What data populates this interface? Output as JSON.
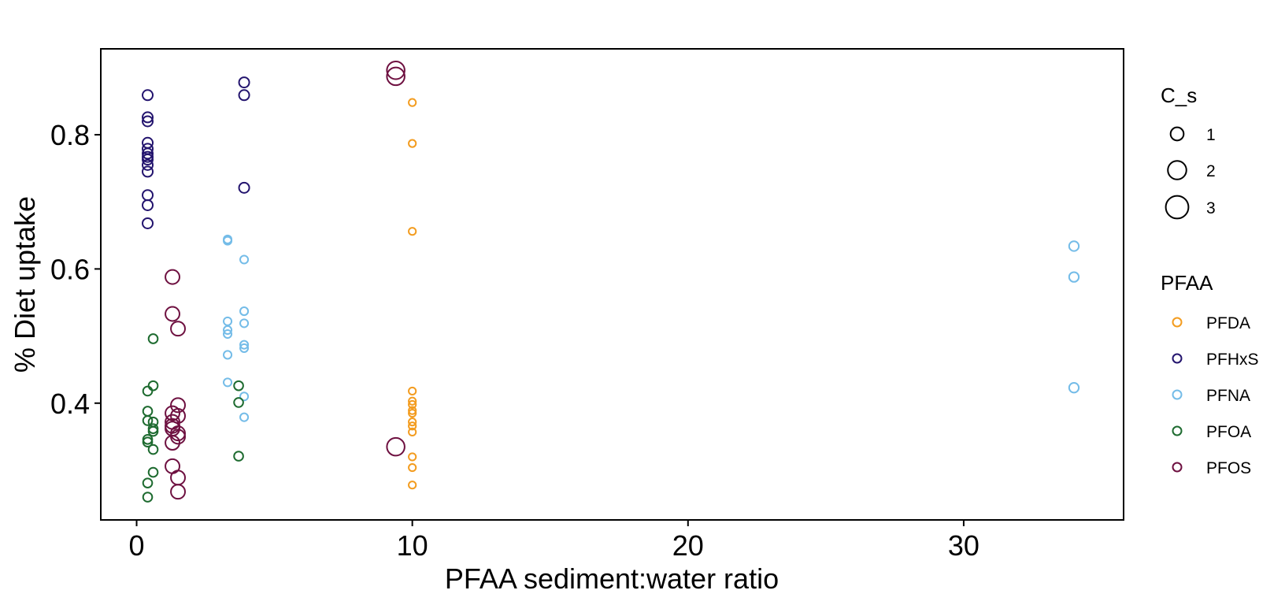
{
  "chart_data": {
    "type": "scatter",
    "xlabel": "PFAA sediment:water ratio",
    "ylabel": "% Diet uptake",
    "xlim": [
      -1.3,
      35.8
    ],
    "ylim": [
      0.226,
      0.928
    ],
    "x_ticks": [
      0,
      10,
      20,
      30
    ],
    "y_ticks": [
      0.4,
      0.6,
      0.8
    ],
    "x_tick_labels": [
      "0",
      "10",
      "20",
      "30"
    ],
    "y_tick_labels": [
      "0.4",
      "0.6",
      "0.8"
    ],
    "grid": false,
    "legend_position": "right",
    "size_legend": {
      "title": "C_s",
      "entries": [
        {
          "label": "1",
          "value": 1
        },
        {
          "label": "2",
          "value": 2
        },
        {
          "label": "3",
          "value": 3
        }
      ]
    },
    "color_legend": {
      "title": "PFAA",
      "entries": [
        {
          "label": "PFDA",
          "color": "#f39c1f"
        },
        {
          "label": "PFHxS",
          "color": "#23146e"
        },
        {
          "label": "PFNA",
          "color": "#74bce8"
        },
        {
          "label": "PFOA",
          "color": "#1e6b30"
        },
        {
          "label": "PFOS",
          "color": "#6e1040"
        }
      ]
    },
    "series": [
      {
        "name": "PFDA",
        "color": "#f39c1f",
        "points": [
          {
            "x": 10.0,
            "y": 0.848,
            "size": 0.5
          },
          {
            "x": 10.0,
            "y": 0.787,
            "size": 0.5
          },
          {
            "x": 10.0,
            "y": 0.656,
            "size": 0.5
          },
          {
            "x": 10.0,
            "y": 0.418,
            "size": 0.5
          },
          {
            "x": 10.0,
            "y": 0.403,
            "size": 0.5
          },
          {
            "x": 10.0,
            "y": 0.398,
            "size": 0.5
          },
          {
            "x": 10.0,
            "y": 0.389,
            "size": 0.5
          },
          {
            "x": 10.0,
            "y": 0.385,
            "size": 0.5
          },
          {
            "x": 10.0,
            "y": 0.372,
            "size": 0.5
          },
          {
            "x": 10.0,
            "y": 0.366,
            "size": 0.5
          },
          {
            "x": 10.0,
            "y": 0.357,
            "size": 0.5
          },
          {
            "x": 10.0,
            "y": 0.32,
            "size": 0.5
          },
          {
            "x": 10.0,
            "y": 0.304,
            "size": 0.5
          },
          {
            "x": 10.0,
            "y": 0.278,
            "size": 0.5
          }
        ]
      },
      {
        "name": "PFHxS",
        "color": "#23146e",
        "points": [
          {
            "x": 0.4,
            "y": 0.859,
            "size": 1.0
          },
          {
            "x": 0.4,
            "y": 0.826,
            "size": 1.0
          },
          {
            "x": 0.4,
            "y": 0.82,
            "size": 1.0
          },
          {
            "x": 0.4,
            "y": 0.788,
            "size": 1.0
          },
          {
            "x": 0.4,
            "y": 0.779,
            "size": 1.0
          },
          {
            "x": 0.4,
            "y": 0.772,
            "size": 1.0
          },
          {
            "x": 0.4,
            "y": 0.767,
            "size": 1.0
          },
          {
            "x": 0.4,
            "y": 0.763,
            "size": 1.0
          },
          {
            "x": 0.4,
            "y": 0.755,
            "size": 1.0
          },
          {
            "x": 0.4,
            "y": 0.745,
            "size": 1.0
          },
          {
            "x": 0.4,
            "y": 0.71,
            "size": 1.0
          },
          {
            "x": 0.4,
            "y": 0.695,
            "size": 1.0
          },
          {
            "x": 0.4,
            "y": 0.668,
            "size": 1.0
          },
          {
            "x": 3.9,
            "y": 0.878,
            "size": 1.0
          },
          {
            "x": 3.9,
            "y": 0.859,
            "size": 1.0
          },
          {
            "x": 3.9,
            "y": 0.721,
            "size": 1.0
          }
        ]
      },
      {
        "name": "PFNA",
        "color": "#74bce8",
        "points": [
          {
            "x": 3.3,
            "y": 0.644,
            "size": 0.6
          },
          {
            "x": 3.3,
            "y": 0.642,
            "size": 0.6
          },
          {
            "x": 3.3,
            "y": 0.522,
            "size": 0.6
          },
          {
            "x": 3.3,
            "y": 0.509,
            "size": 0.6
          },
          {
            "x": 3.3,
            "y": 0.503,
            "size": 0.6
          },
          {
            "x": 3.3,
            "y": 0.472,
            "size": 0.6
          },
          {
            "x": 3.3,
            "y": 0.431,
            "size": 0.6
          },
          {
            "x": 3.9,
            "y": 0.614,
            "size": 0.6
          },
          {
            "x": 3.9,
            "y": 0.537,
            "size": 0.6
          },
          {
            "x": 3.9,
            "y": 0.519,
            "size": 0.6
          },
          {
            "x": 3.9,
            "y": 0.487,
            "size": 0.6
          },
          {
            "x": 3.9,
            "y": 0.482,
            "size": 0.6
          },
          {
            "x": 3.9,
            "y": 0.41,
            "size": 0.6
          },
          {
            "x": 3.9,
            "y": 0.379,
            "size": 0.6
          },
          {
            "x": 34.0,
            "y": 0.634,
            "size": 0.9
          },
          {
            "x": 34.0,
            "y": 0.588,
            "size": 0.9
          },
          {
            "x": 34.0,
            "y": 0.423,
            "size": 0.9
          }
        ]
      },
      {
        "name": "PFOA",
        "color": "#1e6b30",
        "points": [
          {
            "x": 0.6,
            "y": 0.496,
            "size": 0.8
          },
          {
            "x": 0.6,
            "y": 0.426,
            "size": 0.8
          },
          {
            "x": 0.4,
            "y": 0.418,
            "size": 0.8
          },
          {
            "x": 0.4,
            "y": 0.388,
            "size": 0.8
          },
          {
            "x": 0.4,
            "y": 0.374,
            "size": 0.8
          },
          {
            "x": 0.6,
            "y": 0.372,
            "size": 0.8
          },
          {
            "x": 0.6,
            "y": 0.362,
            "size": 0.8
          },
          {
            "x": 0.6,
            "y": 0.358,
            "size": 0.8
          },
          {
            "x": 0.4,
            "y": 0.346,
            "size": 0.8
          },
          {
            "x": 0.4,
            "y": 0.342,
            "size": 0.8
          },
          {
            "x": 0.6,
            "y": 0.331,
            "size": 0.8
          },
          {
            "x": 0.6,
            "y": 0.297,
            "size": 0.8
          },
          {
            "x": 0.4,
            "y": 0.281,
            "size": 0.8
          },
          {
            "x": 0.4,
            "y": 0.26,
            "size": 0.8
          },
          {
            "x": 3.7,
            "y": 0.426,
            "size": 0.8
          },
          {
            "x": 3.7,
            "y": 0.401,
            "size": 0.8
          },
          {
            "x": 3.7,
            "y": 0.321,
            "size": 0.8
          }
        ]
      },
      {
        "name": "PFOS",
        "color": "#6e1040",
        "points": [
          {
            "x": 1.3,
            "y": 0.588,
            "size": 1.9
          },
          {
            "x": 1.3,
            "y": 0.533,
            "size": 1.9
          },
          {
            "x": 1.5,
            "y": 0.511,
            "size": 1.9
          },
          {
            "x": 1.5,
            "y": 0.397,
            "size": 1.9
          },
          {
            "x": 1.3,
            "y": 0.385,
            "size": 1.9
          },
          {
            "x": 1.5,
            "y": 0.381,
            "size": 1.9
          },
          {
            "x": 1.3,
            "y": 0.372,
            "size": 1.9
          },
          {
            "x": 1.3,
            "y": 0.366,
            "size": 1.9
          },
          {
            "x": 1.3,
            "y": 0.362,
            "size": 1.9
          },
          {
            "x": 1.5,
            "y": 0.355,
            "size": 1.9
          },
          {
            "x": 1.5,
            "y": 0.35,
            "size": 1.9
          },
          {
            "x": 1.3,
            "y": 0.341,
            "size": 1.9
          },
          {
            "x": 1.3,
            "y": 0.306,
            "size": 1.9
          },
          {
            "x": 1.5,
            "y": 0.289,
            "size": 1.9
          },
          {
            "x": 1.5,
            "y": 0.268,
            "size": 1.9
          },
          {
            "x": 9.4,
            "y": 0.896,
            "size": 3.0
          },
          {
            "x": 9.4,
            "y": 0.887,
            "size": 3.0
          },
          {
            "x": 9.4,
            "y": 0.335,
            "size": 3.0
          }
        ]
      }
    ]
  }
}
